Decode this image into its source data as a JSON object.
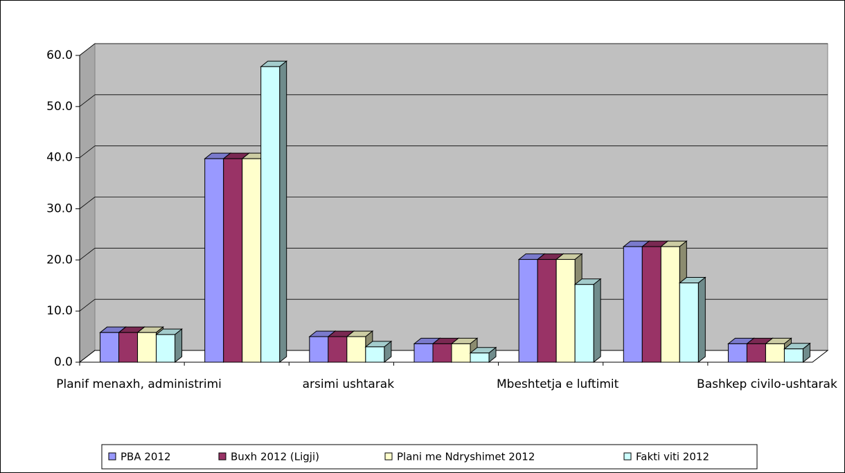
{
  "chart_data": {
    "type": "bar3d",
    "categories": [
      "Planif menaxh, administrimi",
      null,
      "arsimi ushtarak",
      null,
      "Mbeshtetja e luftimit",
      null,
      "Bashkep civilo-ushtarak"
    ],
    "series": [
      {
        "name": "PBA 2012",
        "color": "#9999ff",
        "values": [
          5.8,
          39.8,
          5.0,
          3.6,
          20.1,
          22.6,
          3.6
        ]
      },
      {
        "name": "Buxh 2012 (Ligji)",
        "color": "#993366",
        "values": [
          5.8,
          39.8,
          5.0,
          3.6,
          20.1,
          22.6,
          3.6
        ]
      },
      {
        "name": "Plani me Ndryshimet 2012",
        "color": "#ffffcc",
        "values": [
          5.8,
          39.8,
          5.0,
          3.6,
          20.1,
          22.6,
          3.6
        ]
      },
      {
        "name": "Fakti viti 2012",
        "color": "#ccffff",
        "values": [
          5.4,
          57.8,
          3.0,
          1.8,
          15.2,
          15.5,
          2.6
        ]
      }
    ],
    "ylim": [
      0,
      60
    ],
    "yticks": [
      {
        "value": 0,
        "label": "0.0"
      },
      {
        "value": 10,
        "label": "10.0"
      },
      {
        "value": 20,
        "label": "20.0"
      },
      {
        "value": 30,
        "label": "30.0"
      },
      {
        "value": 40,
        "label": "40.0"
      },
      {
        "value": 50,
        "label": "50.0"
      },
      {
        "value": 60,
        "label": "60.0"
      }
    ],
    "grid": true,
    "legend": "bottom"
  }
}
